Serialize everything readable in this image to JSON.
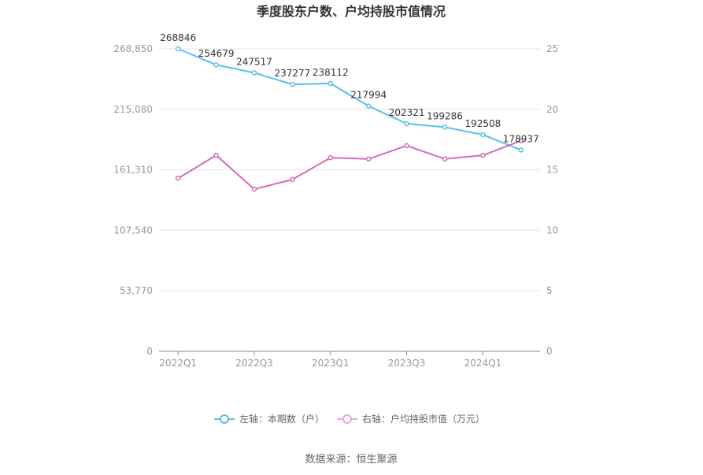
{
  "chart_data": {
    "type": "line",
    "title": "季度股东户数、户均持股市值情况",
    "x": [
      "2022Q1",
      "2022Q2",
      "2022Q3",
      "2022Q4",
      "2023Q1",
      "2023Q2",
      "2023Q3",
      "2023Q4",
      "2024Q1",
      "2024Q2"
    ],
    "x_tick_labels": [
      "2022Q1",
      "2022Q3",
      "2023Q1",
      "2023Q3",
      "2024Q1"
    ],
    "y_left": {
      "ticks": [
        "0",
        "53,770",
        "107,540",
        "161,310",
        "215,080",
        "268,850"
      ],
      "range": [
        0,
        268850
      ]
    },
    "y_right": {
      "ticks": [
        "0",
        "5",
        "10",
        "15",
        "20",
        "25"
      ],
      "range": [
        0,
        25
      ]
    },
    "series": [
      {
        "name": "左轴：本期数（户）",
        "axis": "left",
        "color": "#5bc0eb",
        "values": [
          268846,
          254679,
          247517,
          237277,
          238112,
          217994,
          202321,
          199286,
          192508,
          178937
        ],
        "labels": [
          "268846",
          "254679",
          "247517",
          "237277",
          "238112",
          "217994",
          "202321",
          "199286",
          "192508",
          "178937"
        ]
      },
      {
        "name": "右轴：户均持股市值（万元）",
        "axis": "right",
        "color": "#d46bb3",
        "values": [
          14.3,
          16.2,
          13.4,
          14.2,
          16.0,
          15.9,
          17.0,
          15.9,
          16.2,
          17.4
        ]
      }
    ],
    "legend_position": "bottom",
    "grid": true
  },
  "source": "数据来源：恒生聚源"
}
